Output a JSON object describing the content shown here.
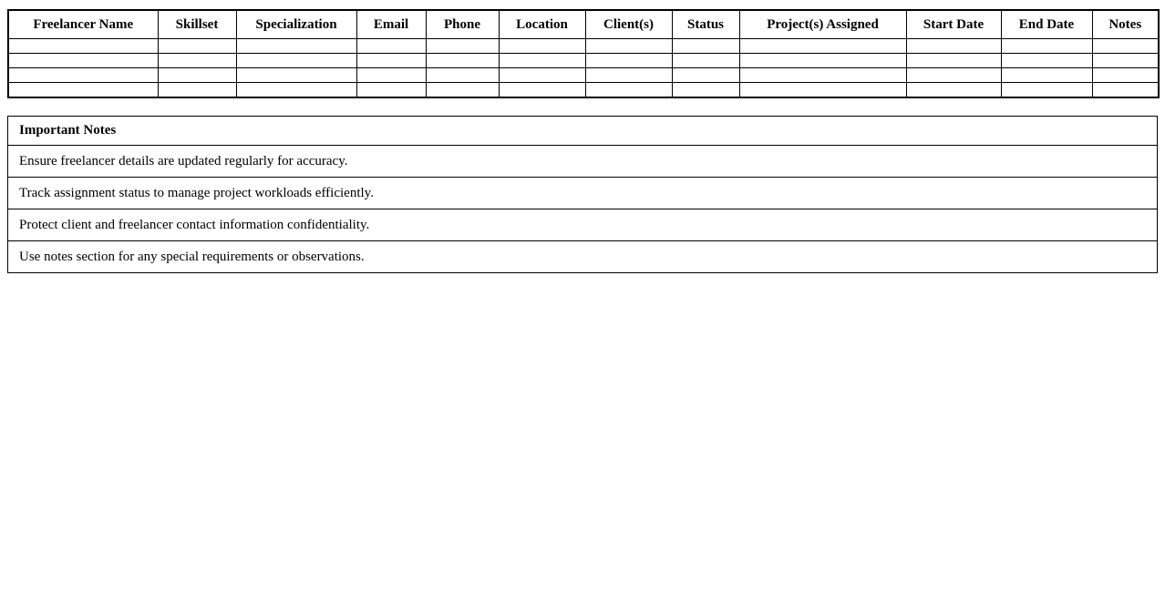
{
  "colors": {
    "border": "#000000",
    "background": "#ffffff",
    "text": "#000000"
  },
  "freelancer_table": {
    "columns": [
      "Freelancer Name",
      "Skillset",
      "Specialization",
      "Email",
      "Phone",
      "Location",
      "Client(s)",
      "Status",
      "Project(s) Assigned",
      "Start Date",
      "End Date",
      "Notes"
    ],
    "empty_row_count": 4,
    "cell_values": []
  },
  "notes_section": {
    "title": "Important Notes",
    "items": [
      "Ensure freelancer details are updated regularly for accuracy.",
      "Track assignment status to manage project workloads efficiently.",
      "Protect client and freelancer contact information confidentiality.",
      "Use notes section for any special requirements or observations."
    ]
  }
}
